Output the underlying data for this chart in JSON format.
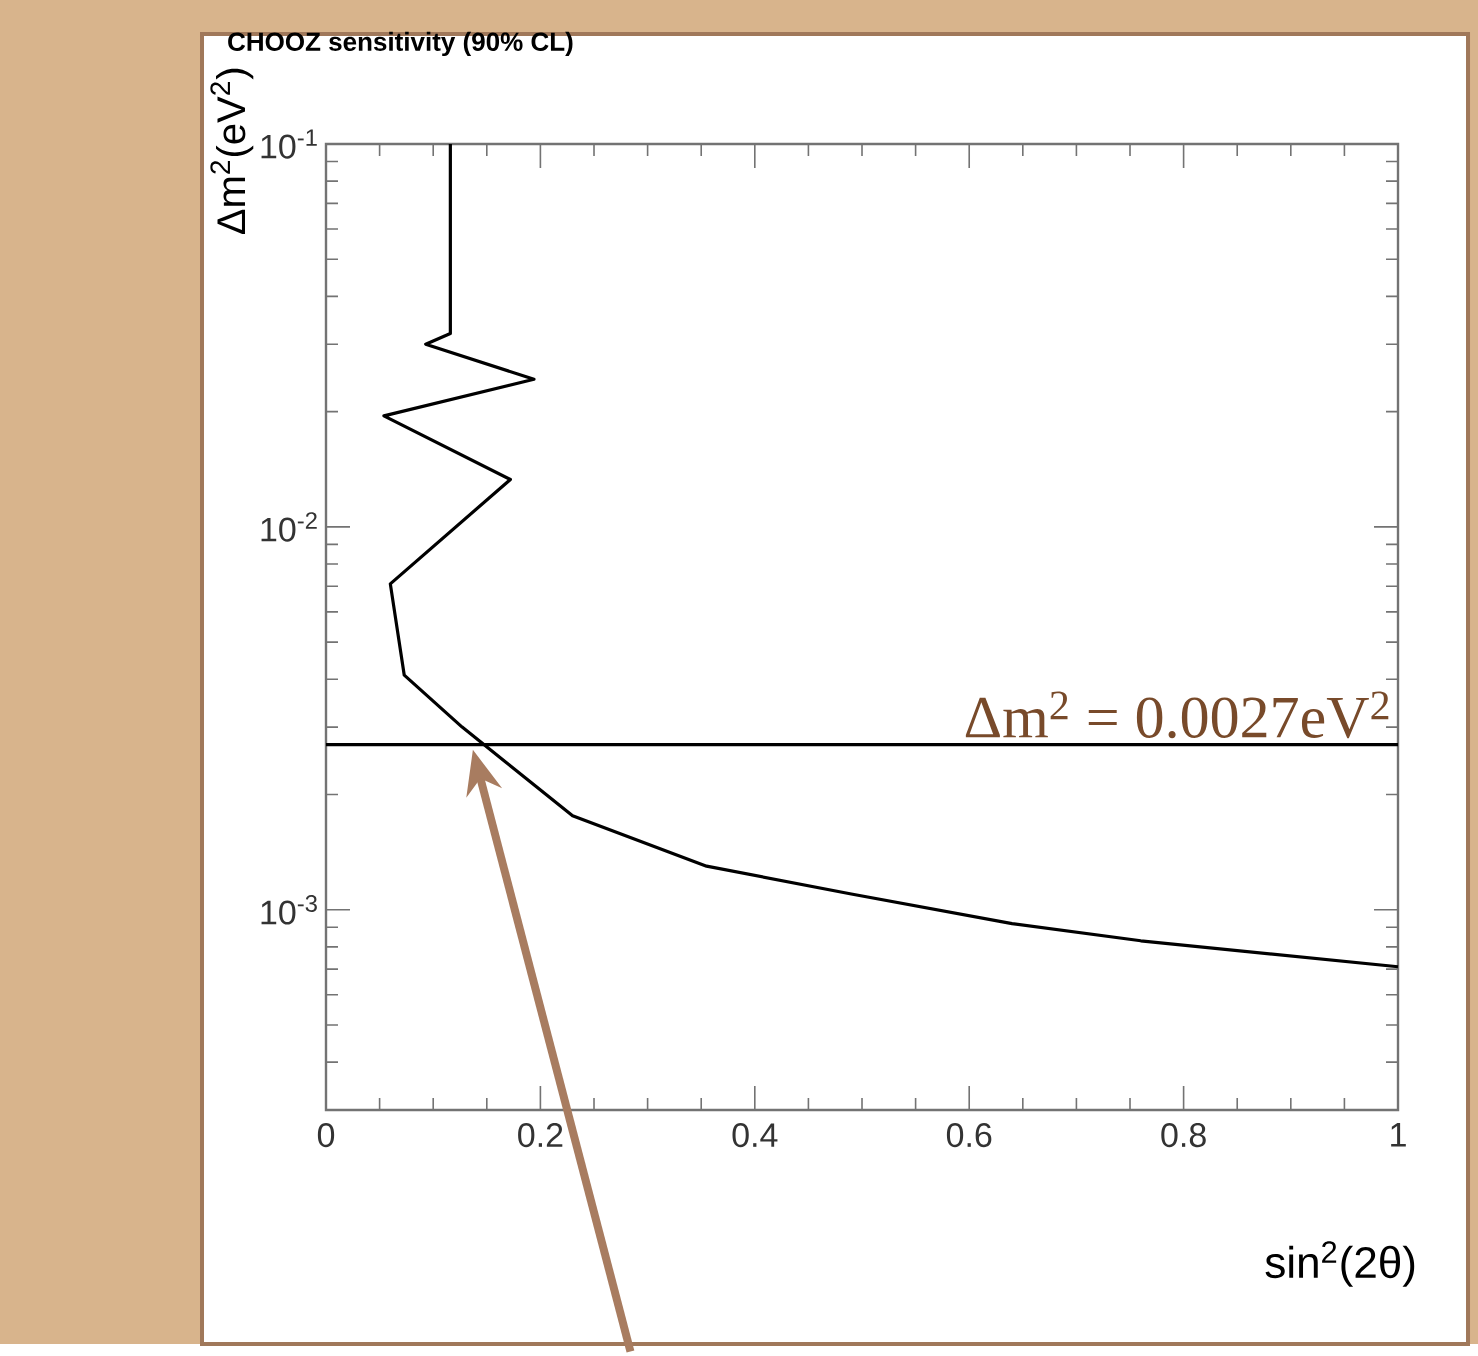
{
  "chart_data": {
    "type": "line",
    "title": "CHOOZ sensitivity (90% CL)",
    "xlabel": "sin$^{2}$(2θ)",
    "ylabel": "Δm$^{2}$(eV$^{2}$)",
    "log": "y",
    "xlim": [
      0,
      1
    ],
    "ylim": [
      0.0003,
      0.1
    ],
    "xticks": [
      0,
      0.2,
      0.4,
      0.6,
      0.8,
      1
    ],
    "yticks": [
      {
        "value": 0.1,
        "label": "10$^{-1}$"
      },
      {
        "value": 0.01,
        "label": "10$^{-2}$"
      },
      {
        "value": 0.001,
        "label": "10$^{-3}$"
      }
    ],
    "series": [
      {
        "color": "#000000",
        "x": [
          0.116,
          0.116,
          0.093,
          0.194,
          0.054,
          0.172,
          0.06,
          0.073,
          0.127,
          0.23,
          0.355,
          0.49,
          0.64,
          0.76,
          1.0
        ],
        "values": [
          0.1,
          0.032,
          0.03,
          0.0243,
          0.0195,
          0.0133,
          0.0071,
          0.0041,
          0.003,
          0.00176,
          0.0013,
          0.0011,
          0.00092,
          0.00083,
          0.00071
        ]
      }
    ],
    "ref_lines": [
      {
        "axis": "y",
        "value": 0.0027,
        "label": "Δm$^{2}$ = 0.0027eV$^{2}$",
        "color": "#000000"
      }
    ]
  }
}
